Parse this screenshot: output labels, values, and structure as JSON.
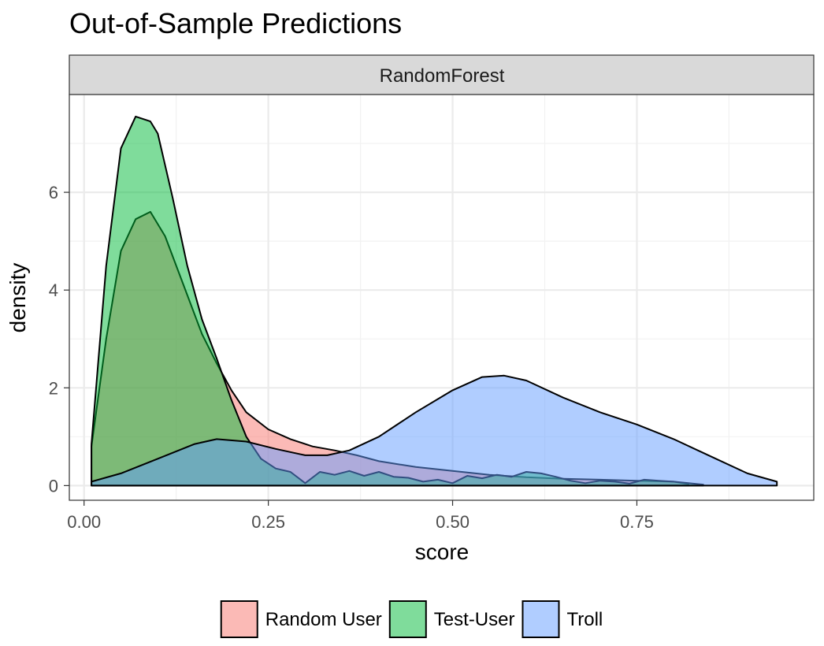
{
  "chart_data": {
    "type": "area",
    "title": "Out-of-Sample Predictions",
    "facet_label": "RandomForest",
    "xlabel": "score",
    "ylabel": "density",
    "xlim": [
      -0.02,
      0.99
    ],
    "ylim": [
      -0.3,
      8.0
    ],
    "x_ticks": [
      0.0,
      0.25,
      0.5,
      0.75
    ],
    "x_tick_labels": [
      "0.00",
      "0.25",
      "0.50",
      "0.75"
    ],
    "y_ticks": [
      0,
      2,
      4,
      6
    ],
    "y_tick_labels": [
      "0",
      "2",
      "4",
      "6"
    ],
    "grid": true,
    "legend_position": "bottom",
    "series": [
      {
        "name": "Random User",
        "color": "#F8766D",
        "points": [
          [
            0.01,
            0
          ],
          [
            0.01,
            0.8
          ],
          [
            0.03,
            3.0
          ],
          [
            0.05,
            4.8
          ],
          [
            0.07,
            5.45
          ],
          [
            0.09,
            5.6
          ],
          [
            0.11,
            5.1
          ],
          [
            0.14,
            3.9
          ],
          [
            0.16,
            3.1
          ],
          [
            0.18,
            2.5
          ],
          [
            0.2,
            1.95
          ],
          [
            0.22,
            1.5
          ],
          [
            0.25,
            1.15
          ],
          [
            0.28,
            0.95
          ],
          [
            0.31,
            0.8
          ],
          [
            0.34,
            0.72
          ],
          [
            0.37,
            0.62
          ],
          [
            0.4,
            0.5
          ],
          [
            0.45,
            0.38
          ],
          [
            0.5,
            0.3
          ],
          [
            0.55,
            0.22
          ],
          [
            0.6,
            0.17
          ],
          [
            0.65,
            0.14
          ],
          [
            0.7,
            0.12
          ],
          [
            0.75,
            0.1
          ],
          [
            0.8,
            0.08
          ],
          [
            0.82,
            0.03
          ],
          [
            0.82,
            0
          ]
        ]
      },
      {
        "name": "Test-User",
        "color": "#00BA38",
        "points": [
          [
            0.01,
            0
          ],
          [
            0.01,
            0.85
          ],
          [
            0.03,
            4.5
          ],
          [
            0.05,
            6.9
          ],
          [
            0.07,
            7.55
          ],
          [
            0.09,
            7.45
          ],
          [
            0.1,
            7.2
          ],
          [
            0.12,
            5.9
          ],
          [
            0.14,
            4.5
          ],
          [
            0.16,
            3.4
          ],
          [
            0.18,
            2.6
          ],
          [
            0.2,
            1.75
          ],
          [
            0.22,
            1.0
          ],
          [
            0.24,
            0.55
          ],
          [
            0.26,
            0.35
          ],
          [
            0.28,
            0.28
          ],
          [
            0.3,
            0.05
          ],
          [
            0.32,
            0.28
          ],
          [
            0.34,
            0.22
          ],
          [
            0.36,
            0.3
          ],
          [
            0.38,
            0.2
          ],
          [
            0.4,
            0.28
          ],
          [
            0.42,
            0.18
          ],
          [
            0.44,
            0.16
          ],
          [
            0.46,
            0.08
          ],
          [
            0.48,
            0.12
          ],
          [
            0.5,
            0.05
          ],
          [
            0.52,
            0.2
          ],
          [
            0.54,
            0.15
          ],
          [
            0.56,
            0.22
          ],
          [
            0.58,
            0.18
          ],
          [
            0.6,
            0.28
          ],
          [
            0.62,
            0.25
          ],
          [
            0.64,
            0.18
          ],
          [
            0.66,
            0.1
          ],
          [
            0.68,
            0.05
          ],
          [
            0.7,
            0.1
          ],
          [
            0.72,
            0.08
          ],
          [
            0.74,
            0.04
          ],
          [
            0.76,
            0.12
          ],
          [
            0.78,
            0.1
          ],
          [
            0.8,
            0.08
          ],
          [
            0.82,
            0.05
          ],
          [
            0.84,
            0.02
          ],
          [
            0.84,
            0
          ]
        ]
      },
      {
        "name": "Troll",
        "color": "#619CFF",
        "points": [
          [
            0.01,
            0
          ],
          [
            0.01,
            0.08
          ],
          [
            0.05,
            0.25
          ],
          [
            0.1,
            0.55
          ],
          [
            0.15,
            0.85
          ],
          [
            0.18,
            0.95
          ],
          [
            0.22,
            0.9
          ],
          [
            0.26,
            0.75
          ],
          [
            0.3,
            0.62
          ],
          [
            0.33,
            0.62
          ],
          [
            0.36,
            0.72
          ],
          [
            0.4,
            1.0
          ],
          [
            0.45,
            1.5
          ],
          [
            0.5,
            1.95
          ],
          [
            0.54,
            2.22
          ],
          [
            0.57,
            2.25
          ],
          [
            0.6,
            2.15
          ],
          [
            0.65,
            1.8
          ],
          [
            0.7,
            1.5
          ],
          [
            0.75,
            1.25
          ],
          [
            0.8,
            0.95
          ],
          [
            0.85,
            0.6
          ],
          [
            0.9,
            0.25
          ],
          [
            0.94,
            0.08
          ],
          [
            0.94,
            0
          ]
        ]
      }
    ]
  }
}
